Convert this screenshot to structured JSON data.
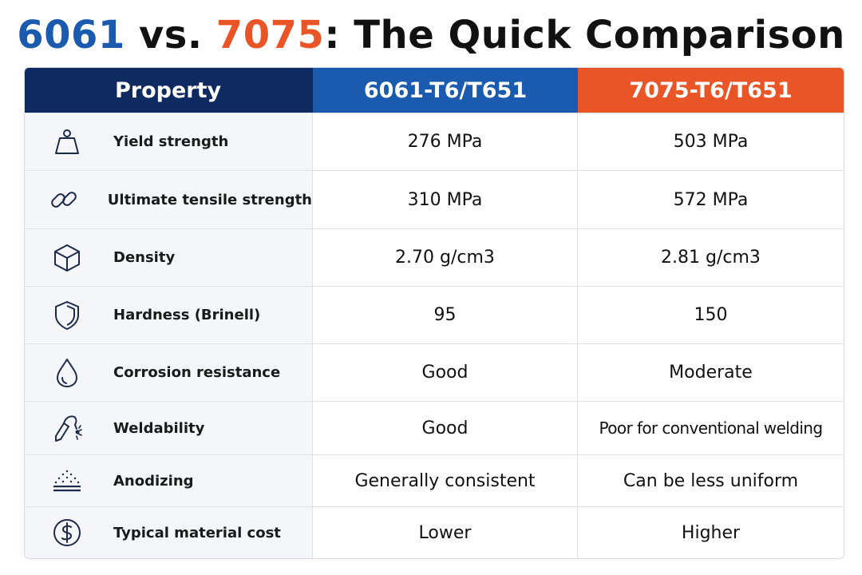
{
  "title": {
    "part1": "6061",
    "part2": " vs. ",
    "part3": "7075",
    "part4": ": The Quick Comparison"
  },
  "table": {
    "headers": {
      "property": "Property",
      "alloy_a": "6061-T6/T651",
      "alloy_b": "7075-T6/T651"
    },
    "colors": {
      "property_header": "#0f2a60",
      "alloy_a": "#1a5bb0",
      "alloy_b": "#ea5527"
    },
    "rows": [
      {
        "icon": "weight-icon",
        "property": "Yield strength",
        "a": "276 MPa",
        "b": "503 MPa"
      },
      {
        "icon": "chain-link-icon",
        "property": "Ultimate tensile strength",
        "a": "310 MPa",
        "b": "572 MPa"
      },
      {
        "icon": "cube-icon",
        "property": "Density",
        "a": "2.70 g/cm3",
        "b": "2.81 g/cm3"
      },
      {
        "icon": "shield-icon",
        "property": "Hardness (Brinell)",
        "a": "95",
        "b": "150"
      },
      {
        "icon": "water-drop-icon",
        "property": "Corrosion resistance",
        "a": "Good",
        "b": "Moderate"
      },
      {
        "icon": "welding-torch-icon",
        "property": "Weldability",
        "a": "Good",
        "b": "Poor for conventional welding"
      },
      {
        "icon": "anodizing-surface-icon",
        "property": "Anodizing",
        "a": "Generally consistent",
        "b": "Can be less uniform"
      },
      {
        "icon": "dollar-coin-icon",
        "property": "Typical material cost",
        "a": "Lower",
        "b": "Higher"
      }
    ]
  }
}
